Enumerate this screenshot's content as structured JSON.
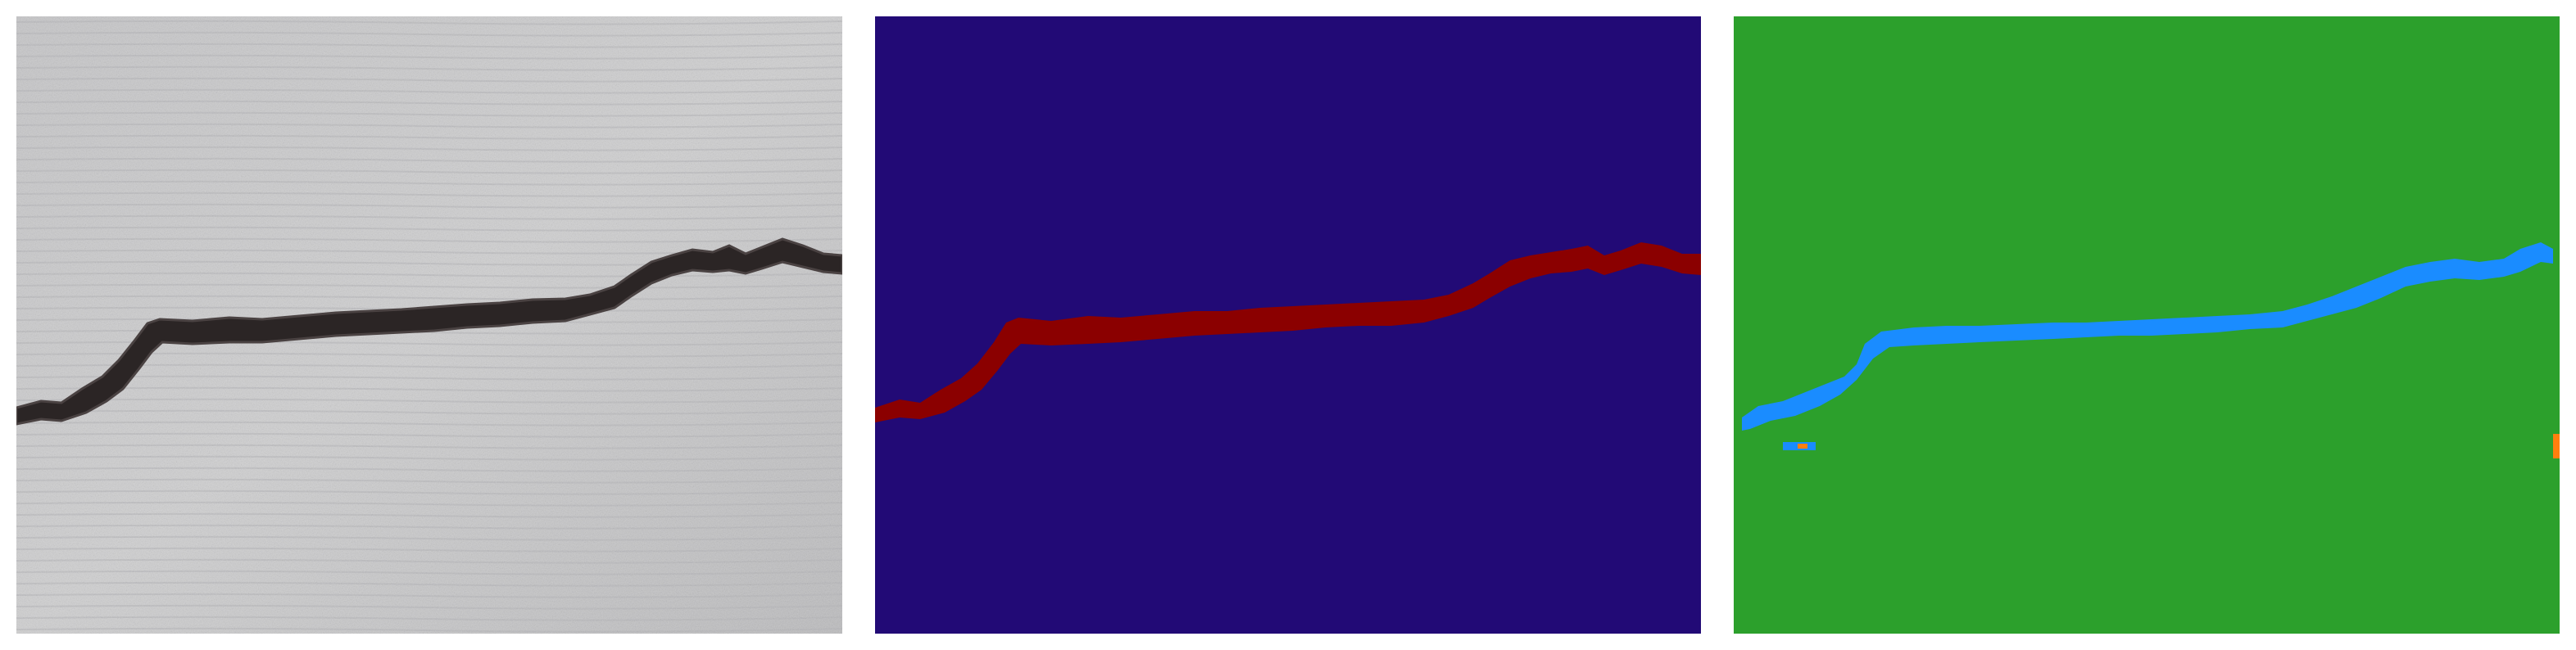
{
  "figure": {
    "panels": [
      {
        "id": "photo",
        "kind": "concrete surface photograph with crack",
        "colors": {
          "concrete_light": "#cfcfcf",
          "concrete_mid": "#b9b9bb",
          "concrete_dark": "#a7a7a9",
          "crack_dark": "#2a2424",
          "crack_edge": "#4a4242"
        }
      },
      {
        "id": "ground-truth-mask",
        "kind": "binary segmentation mask",
        "colors": {
          "background": "#220a76",
          "crack": "#8b0000"
        }
      },
      {
        "id": "prediction-mask",
        "kind": "predicted segmentation mask",
        "colors": {
          "background": "#2ca02c",
          "crack": "#1a8cff",
          "noise": "#ff7f0e"
        }
      }
    ]
  }
}
